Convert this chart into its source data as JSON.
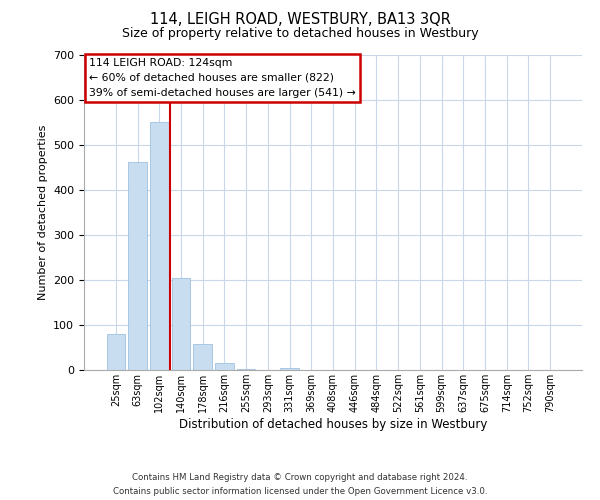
{
  "title": "114, LEIGH ROAD, WESTBURY, BA13 3QR",
  "subtitle": "Size of property relative to detached houses in Westbury",
  "xlabel": "Distribution of detached houses by size in Westbury",
  "ylabel": "Number of detached properties",
  "bar_labels": [
    "25sqm",
    "63sqm",
    "102sqm",
    "140sqm",
    "178sqm",
    "216sqm",
    "255sqm",
    "293sqm",
    "331sqm",
    "369sqm",
    "408sqm",
    "446sqm",
    "484sqm",
    "522sqm",
    "561sqm",
    "599sqm",
    "637sqm",
    "675sqm",
    "714sqm",
    "752sqm",
    "790sqm"
  ],
  "bar_values": [
    79,
    462,
    551,
    204,
    57,
    15,
    2,
    0,
    5,
    0,
    0,
    0,
    0,
    0,
    0,
    0,
    0,
    0,
    0,
    0,
    0
  ],
  "bar_color": "#c8ddf0",
  "bar_edge_color": "#a0c0e0",
  "vline_x": 2.5,
  "vline_color": "#cc0000",
  "annotation_title": "114 LEIGH ROAD: 124sqm",
  "annotation_line1": "← 60% of detached houses are smaller (822)",
  "annotation_line2": "39% of semi-detached houses are larger (541) →",
  "annotation_box_color": "#cc0000",
  "ylim": [
    0,
    700
  ],
  "yticks": [
    0,
    100,
    200,
    300,
    400,
    500,
    600,
    700
  ],
  "grid_color": "#c8d8e8",
  "background_color": "#ffffff",
  "footer_line1": "Contains HM Land Registry data © Crown copyright and database right 2024.",
  "footer_line2": "Contains public sector information licensed under the Open Government Licence v3.0."
}
